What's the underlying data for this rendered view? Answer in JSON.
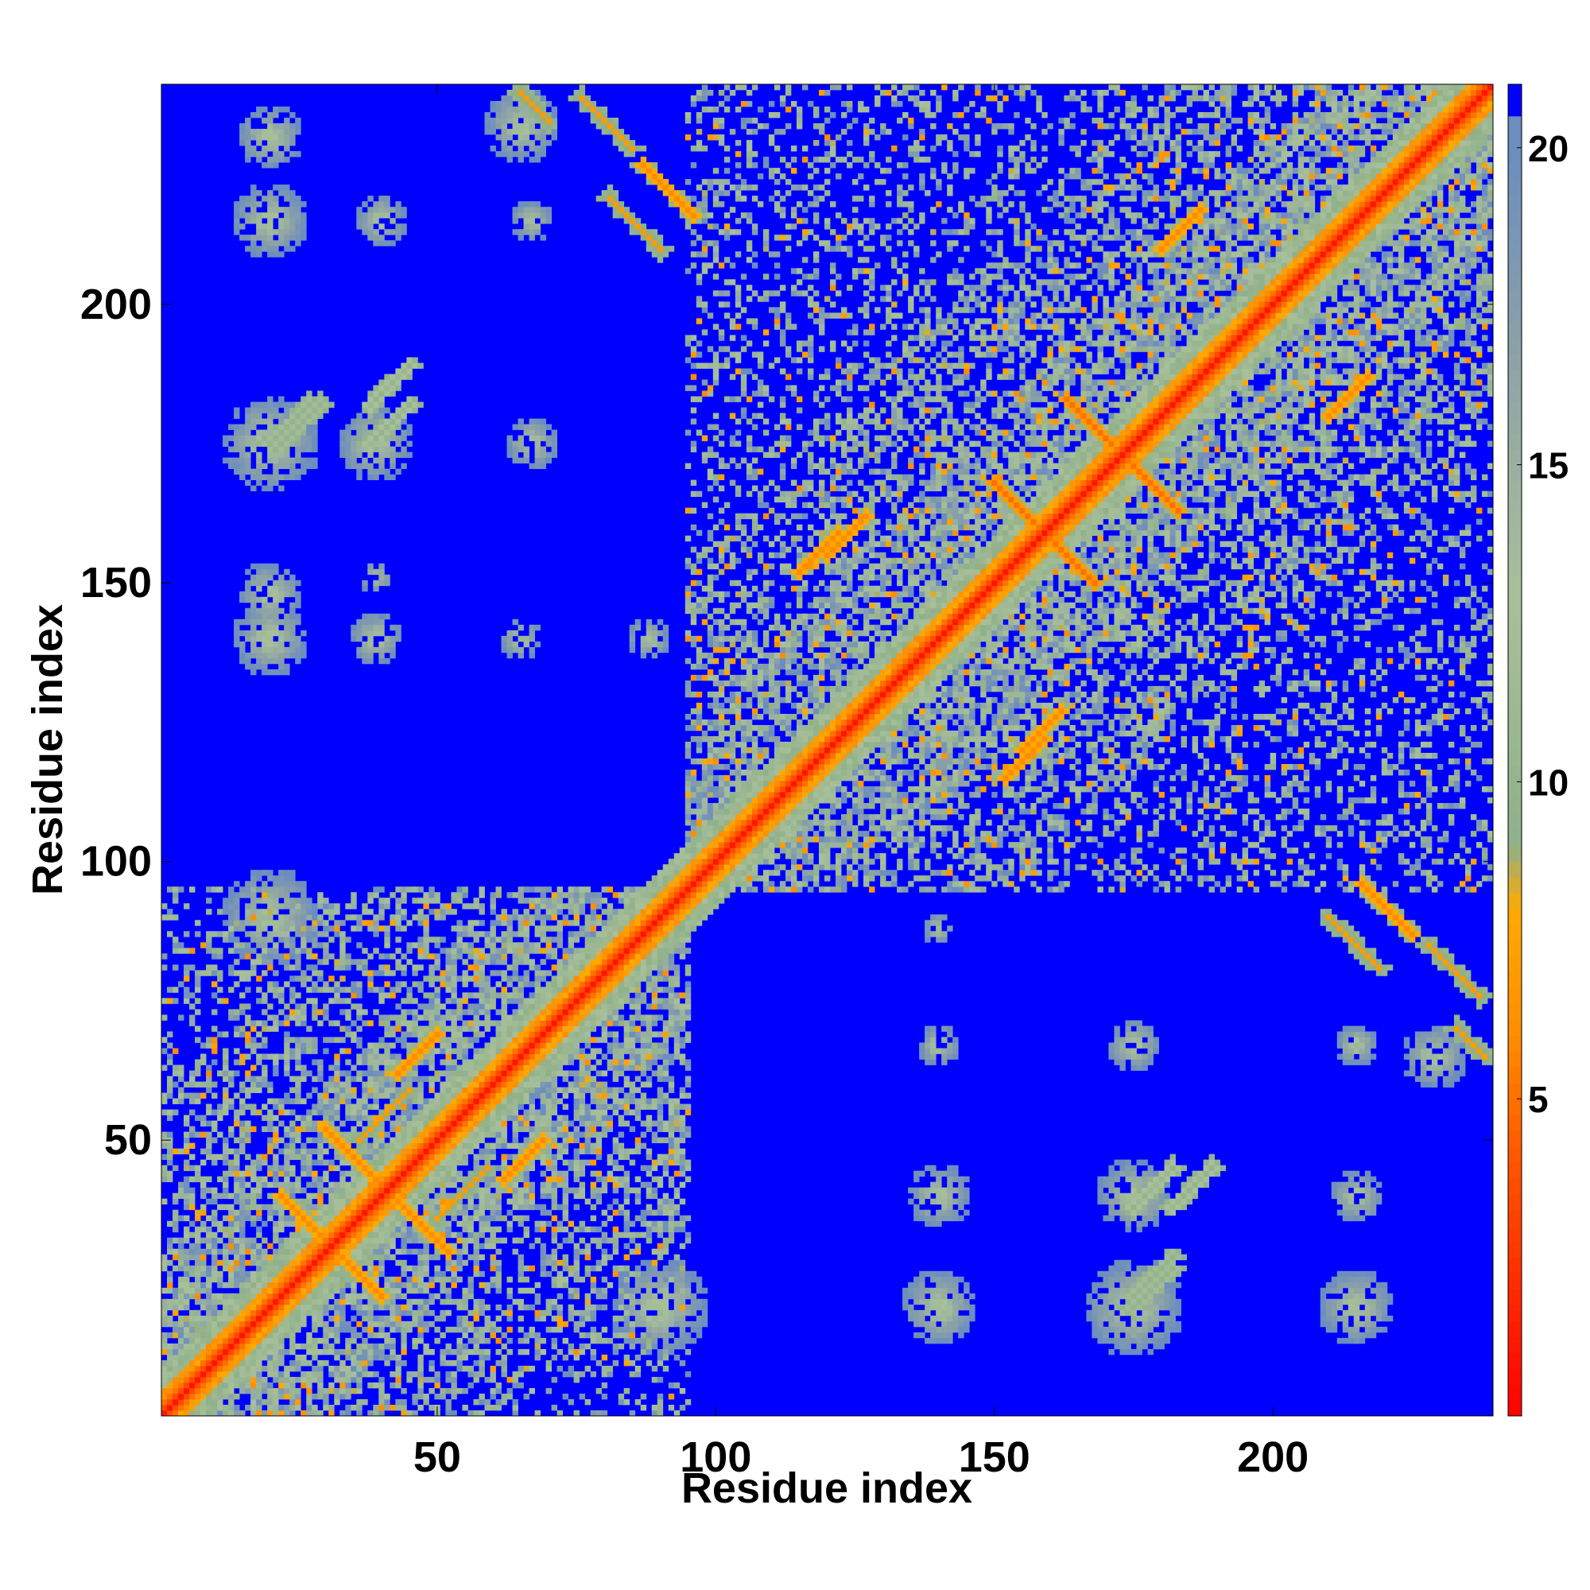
{
  "chart_data": {
    "type": "heatmap",
    "title": "",
    "xlabel": "Residue index",
    "ylabel": "Residue index",
    "n_residues": 239,
    "xlim": [
      1,
      239
    ],
    "ylim": [
      1,
      239
    ],
    "x_ticks": [
      50,
      100,
      150,
      200
    ],
    "y_ticks": [
      50,
      100,
      150,
      200
    ],
    "x_tick_labels": [
      "50",
      "100",
      "150",
      "200"
    ],
    "y_tick_labels": [
      "50",
      "100",
      "150",
      "200"
    ],
    "value_range": [
      0,
      21
    ],
    "colorbar": {
      "ticks": [
        5,
        10,
        15,
        20
      ],
      "tick_labels": [
        "5",
        "10",
        "15",
        "20"
      ],
      "stops": [
        {
          "value": 0,
          "color": "#ff0000"
        },
        {
          "value": 4,
          "color": "#ff5500"
        },
        {
          "value": 6,
          "color": "#ff8c00"
        },
        {
          "value": 8,
          "color": "#ffaa00"
        },
        {
          "value": 9,
          "color": "#8fb08a"
        },
        {
          "value": 13,
          "color": "#a8c09a"
        },
        {
          "value": 17,
          "color": "#8aa0a8"
        },
        {
          "value": 20,
          "color": "#6b8dbf"
        },
        {
          "value": 21,
          "color": "#0000ff"
        }
      ]
    },
    "background_value": 21,
    "diagonal_helices": [
      [
        1,
        90
      ],
      [
        92,
        239
      ]
    ],
    "domains": [
      {
        "start": 1,
        "end": 95,
        "strength": 1.0
      },
      {
        "start": 95,
        "end": 239,
        "strength": 1.0
      }
    ],
    "contact_features": [
      {
        "i": 22,
        "j": 40,
        "len": 14,
        "dir": "anti",
        "value": 6
      },
      {
        "i": 30,
        "j": 52,
        "len": 12,
        "dir": "anti",
        "value": 6
      },
      {
        "i": 43,
        "j": 62,
        "len": 8,
        "dir": "par",
        "value": 6
      },
      {
        "i": 36,
        "j": 50,
        "len": 10,
        "dir": "par",
        "value": 7
      },
      {
        "i": 115,
        "j": 152,
        "len": 8,
        "dir": "par",
        "value": 6
      },
      {
        "i": 150,
        "j": 168,
        "len": 14,
        "dir": "anti",
        "value": 5
      },
      {
        "i": 163,
        "j": 183,
        "len": 16,
        "dir": "anti",
        "value": 5
      },
      {
        "i": 155,
        "j": 120,
        "len": 8,
        "dir": "par",
        "value": 6
      },
      {
        "i": 210,
        "j": 180,
        "len": 8,
        "dir": "par",
        "value": 6
      },
      {
        "i": 87,
        "j": 225,
        "len": 10,
        "dir": "anti",
        "value": 6
      },
      {
        "i": 65,
        "j": 238,
        "len": 6,
        "dir": "anti",
        "value": 7
      },
      {
        "i": 22,
        "j": 175,
        "len": 8,
        "dir": "par",
        "value": 10
      },
      {
        "i": 38,
        "j": 175,
        "len": 8,
        "dir": "par",
        "value": 11
      },
      {
        "i": 175,
        "j": 20,
        "len": 8,
        "dir": "par",
        "value": 10
      },
      {
        "i": 182,
        "j": 38,
        "len": 8,
        "dir": "par",
        "value": 11
      },
      {
        "i": 210,
        "j": 90,
        "len": 10,
        "dir": "anti",
        "value": 7
      },
      {
        "i": 228,
        "j": 85,
        "len": 10,
        "dir": "anti",
        "value": 7
      }
    ],
    "contact_blobs": [
      {
        "x": 20,
        "y": 215,
        "r": 7
      },
      {
        "x": 40,
        "y": 215,
        "r": 5
      },
      {
        "x": 67,
        "y": 215,
        "r": 4
      },
      {
        "x": 20,
        "y": 175,
        "r": 9
      },
      {
        "x": 39,
        "y": 175,
        "r": 7
      },
      {
        "x": 67,
        "y": 175,
        "r": 5
      },
      {
        "x": 20,
        "y": 140,
        "r": 7
      },
      {
        "x": 39,
        "y": 140,
        "r": 5
      },
      {
        "x": 65,
        "y": 140,
        "r": 4
      },
      {
        "x": 88,
        "y": 140,
        "r": 4
      },
      {
        "x": 20,
        "y": 148,
        "r": 6
      },
      {
        "x": 39,
        "y": 151,
        "r": 3
      },
      {
        "x": 140,
        "y": 40,
        "r": 6
      },
      {
        "x": 175,
        "y": 40,
        "r": 7
      },
      {
        "x": 215,
        "y": 40,
        "r": 5
      },
      {
        "x": 140,
        "y": 20,
        "r": 7
      },
      {
        "x": 175,
        "y": 20,
        "r": 9
      },
      {
        "x": 215,
        "y": 20,
        "r": 7
      },
      {
        "x": 140,
        "y": 67,
        "r": 4
      },
      {
        "x": 175,
        "y": 67,
        "r": 5
      },
      {
        "x": 215,
        "y": 67,
        "r": 4
      },
      {
        "x": 140,
        "y": 88,
        "r": 3
      },
      {
        "x": 20,
        "y": 90,
        "r": 9
      },
      {
        "x": 90,
        "y": 20,
        "r": 9
      },
      {
        "x": 229,
        "y": 65,
        "r": 6
      },
      {
        "x": 20,
        "y": 230,
        "r": 6
      },
      {
        "x": 65,
        "y": 232,
        "r": 7
      }
    ]
  }
}
